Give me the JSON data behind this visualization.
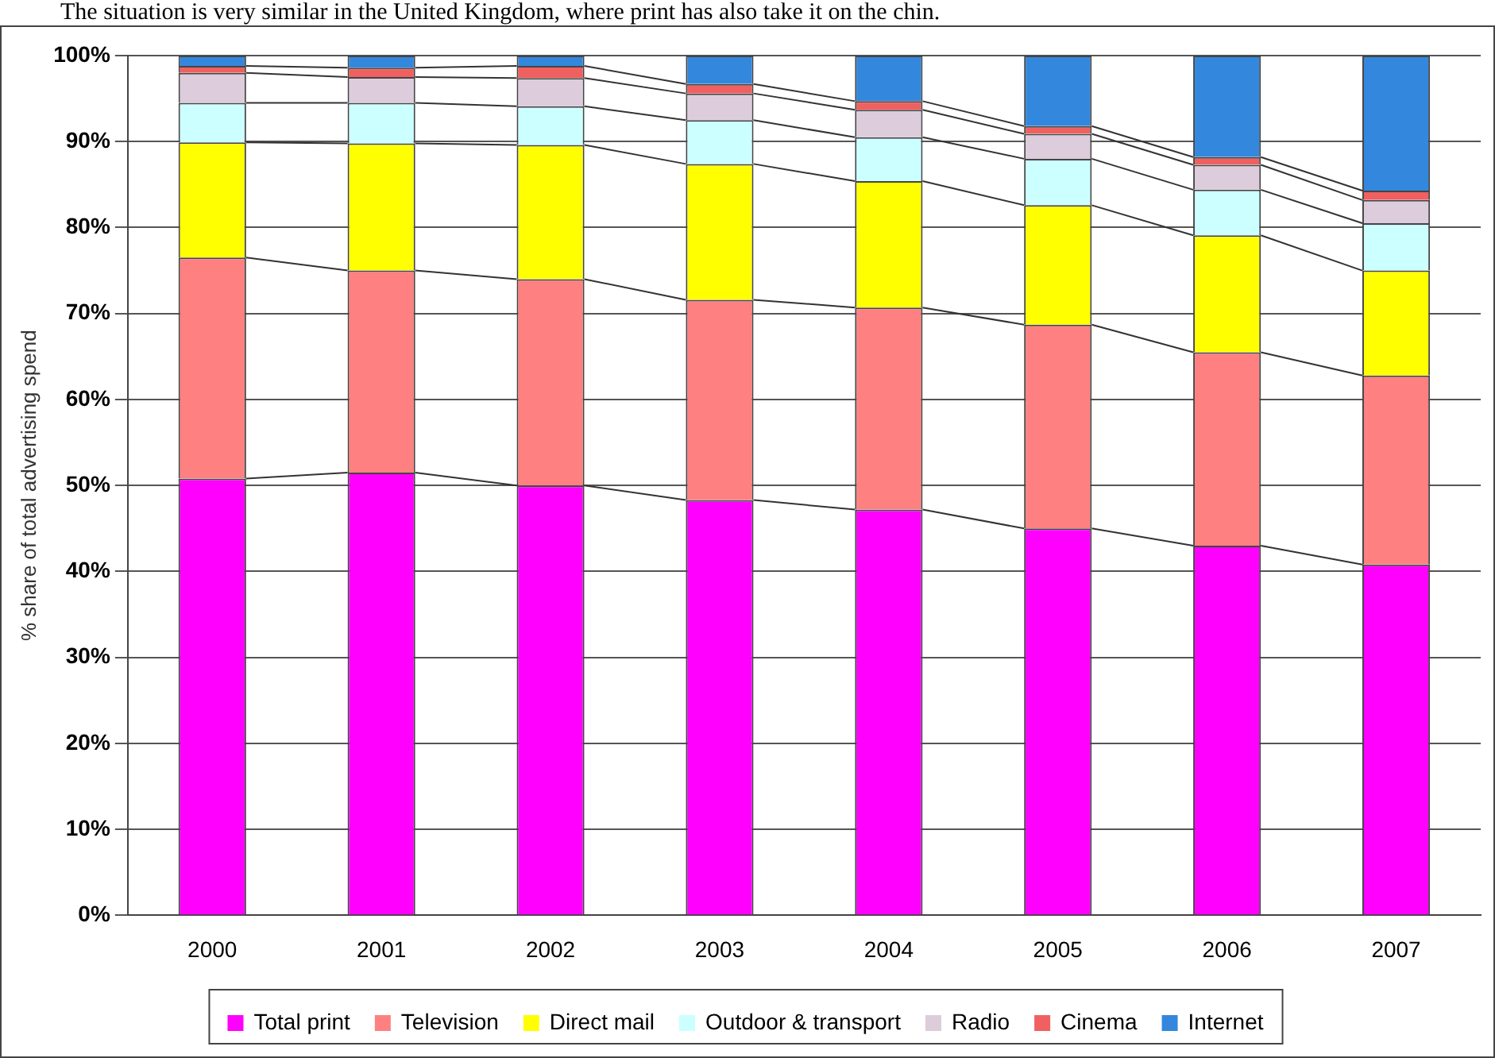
{
  "chart_data": {
    "type": "bar",
    "title": "The situation is very similar in the United Kingdom, where print has also take it on the chin.",
    "ylabel": "% share of total advertising spend",
    "categories": [
      "2000",
      "2001",
      "2002",
      "2003",
      "2004",
      "2005",
      "2006",
      "2007"
    ],
    "stacked": true,
    "series": [
      {
        "name": "Total print",
        "color": "#ff00ff",
        "values": [
          50.8,
          51.5,
          50,
          48.3,
          47.2,
          45,
          43,
          40.8
        ]
      },
      {
        "name": "Television",
        "color": "#ff8080",
        "values": [
          25.7,
          23.5,
          24,
          23.3,
          23.5,
          23.7,
          22.5,
          22
        ]
      },
      {
        "name": "Direct mail",
        "color": "#ffff00",
        "values": [
          13.4,
          14.8,
          15.6,
          15.8,
          14.7,
          13.9,
          13.6,
          12.2
        ]
      },
      {
        "name": "Outdoor & transport",
        "color": "#ccffff",
        "values": [
          4.6,
          4.7,
          4.5,
          5.1,
          5.1,
          5.4,
          5.3,
          5.5
        ]
      },
      {
        "name": "Radio",
        "color": "#dcccdc",
        "values": [
          3.5,
          3.0,
          3.3,
          3.1,
          3.2,
          2.9,
          2.9,
          2.7
        ]
      },
      {
        "name": "Cinema",
        "color": "#f06060",
        "values": [
          0.8,
          1.1,
          1.4,
          1.1,
          1.0,
          0.9,
          0.9,
          1.1
        ]
      },
      {
        "name": "Internet",
        "color": "#3388dd",
        "values": [
          1.2,
          1.4,
          1.2,
          3.3,
          5.3,
          8.2,
          11.8,
          15.7
        ]
      }
    ],
    "ylim": [
      0,
      100
    ],
    "yticks": [
      {
        "value": 0,
        "label": "0%"
      },
      {
        "value": 10,
        "label": "10%"
      },
      {
        "value": 20,
        "label": "20%"
      },
      {
        "value": 30,
        "label": "30%"
      },
      {
        "value": 40,
        "label": "40%"
      },
      {
        "value": 50,
        "label": "50%"
      },
      {
        "value": 60,
        "label": "60%"
      },
      {
        "value": 70,
        "label": "70%"
      },
      {
        "value": 80,
        "label": "80%"
      },
      {
        "value": 90,
        "label": "90%"
      },
      {
        "value": 100,
        "label": "100%"
      }
    ],
    "grid": "y",
    "legend": "bottom"
  }
}
